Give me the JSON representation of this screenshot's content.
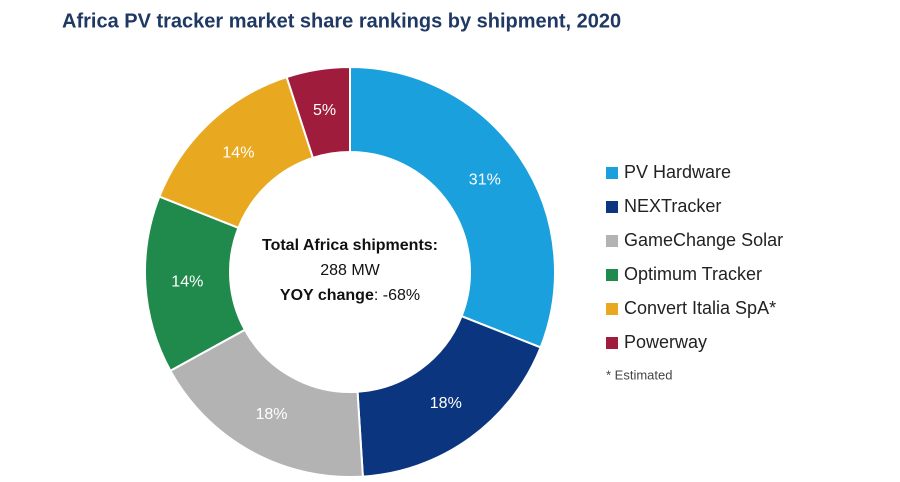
{
  "chart_data": {
    "type": "donut",
    "title": "Africa PV tracker market share rankings by shipment, 2020",
    "categories": [
      "PV Hardware",
      "NEXTracker",
      "GameChange Solar",
      "Optimum Tracker",
      "Convert Italia SpA*",
      "Powerway"
    ],
    "values": [
      31,
      18,
      18,
      14,
      14,
      5
    ],
    "value_labels": [
      "31%",
      "18%",
      "18%",
      "14%",
      "14%",
      "5%"
    ],
    "colors": [
      "#1aa0dc",
      "#0c3580",
      "#b3b3b3",
      "#1f8a4c",
      "#e8a820",
      "#a01c3c"
    ],
    "center_text": {
      "heading": "Total Africa shipments:",
      "total": "288 MW",
      "change_label": "YOY change",
      "change_value": ": -68%"
    },
    "footnote": "* Estimated",
    "legend": "right"
  }
}
